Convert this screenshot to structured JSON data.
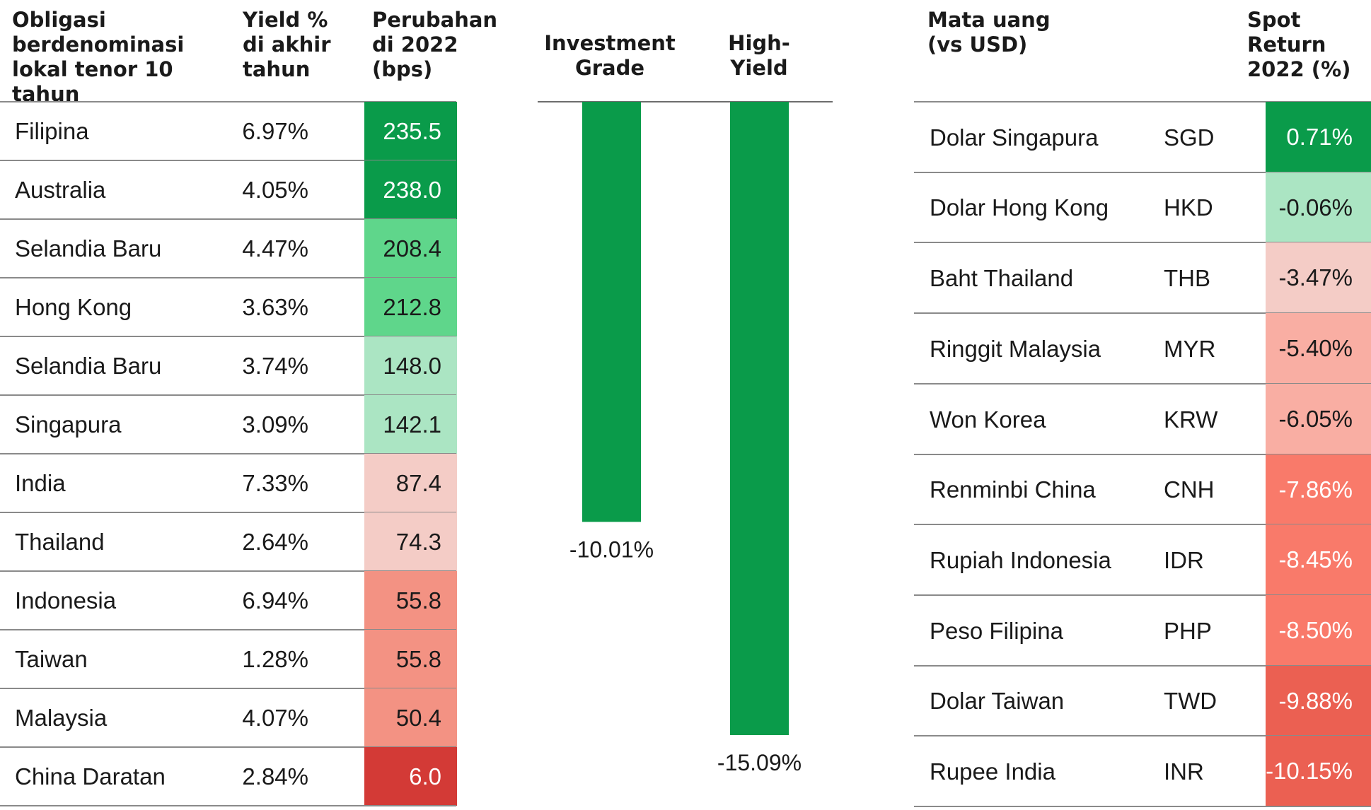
{
  "bonds": {
    "headers": {
      "country": "Obligasi\nberdenominasi\nlokal tenor 10 tahun",
      "yield": "Yield %\ndi akhir\ntahun",
      "change": "Perubahan\ndi 2022\n(bps)"
    },
    "rows": [
      {
        "country": "Filipina",
        "yield": "6.97%",
        "change": "235.5",
        "color": "#0a9b4a",
        "text_color": "#ffffff"
      },
      {
        "country": "Australia",
        "yield": "4.05%",
        "change": "238.0",
        "color": "#0a9b4a",
        "text_color": "#ffffff"
      },
      {
        "country": "Selandia Baru",
        "yield": "4.47%",
        "change": "208.4",
        "color": "#5fd68b",
        "text_color": "#1a1a1a"
      },
      {
        "country": "Hong Kong",
        "yield": "3.63%",
        "change": "212.8",
        "color": "#5fd68b",
        "text_color": "#1a1a1a"
      },
      {
        "country": "Selandia Baru",
        "yield": "3.74%",
        "change": "148.0",
        "color": "#abe5c3",
        "text_color": "#1a1a1a"
      },
      {
        "country": "Singapura",
        "yield": "3.09%",
        "change": "142.1",
        "color": "#abe5c3",
        "text_color": "#1a1a1a"
      },
      {
        "country": "India",
        "yield": "7.33%",
        "change": "87.4",
        "color": "#f4ccc6",
        "text_color": "#1a1a1a"
      },
      {
        "country": "Thailand",
        "yield": "2.64%",
        "change": "74.3",
        "color": "#f4ccc6",
        "text_color": "#1a1a1a"
      },
      {
        "country": "Indonesia",
        "yield": "6.94%",
        "change": "55.8",
        "color": "#f39283",
        "text_color": "#1a1a1a"
      },
      {
        "country": "Taiwan",
        "yield": "1.28%",
        "change": "55.8",
        "color": "#f39283",
        "text_color": "#1a1a1a"
      },
      {
        "country": "Malaysia",
        "yield": "4.07%",
        "change": "50.4",
        "color": "#f39283",
        "text_color": "#1a1a1a"
      },
      {
        "country": "China Daratan",
        "yield": "2.84%",
        "change": "6.0",
        "color": "#d33a36",
        "text_color": "#ffffff"
      }
    ]
  },
  "chart_data": {
    "type": "bar",
    "categories": [
      "Investment\nGrade",
      "High-\nYield"
    ],
    "values": [
      -10.01,
      -15.09
    ],
    "value_labels": [
      "-10.01%",
      "-15.09%"
    ],
    "ylim": [
      -15.09,
      0
    ],
    "bar_color": "#0a9b4a",
    "grid": false
  },
  "currencies": {
    "headers": {
      "currency": "Mata uang\n(vs USD)",
      "spot": "Spot\nReturn\n2022 (%)"
    },
    "rows": [
      {
        "name": "Dolar Singapura",
        "code": "SGD",
        "spot": "0.71%",
        "color": "#0a9b4a",
        "text_color": "#ffffff"
      },
      {
        "name": "Dolar Hong Kong",
        "code": "HKD",
        "spot": "-0.06%",
        "color": "#abe5c3",
        "text_color": "#1a1a1a"
      },
      {
        "name": "Baht Thailand",
        "code": "THB",
        "spot": "-3.47%",
        "color": "#f4ccc6",
        "text_color": "#1a1a1a"
      },
      {
        "name": "Ringgit Malaysia",
        "code": "MYR",
        "spot": "-5.40%",
        "color": "#f9aea3",
        "text_color": "#1a1a1a"
      },
      {
        "name": "Won Korea",
        "code": "KRW",
        "spot": "-6.05%",
        "color": "#f9aea3",
        "text_color": "#1a1a1a"
      },
      {
        "name": "Renminbi China",
        "code": "CNH",
        "spot": "-7.86%",
        "color": "#f97a6a",
        "text_color": "#ffffff"
      },
      {
        "name": "Rupiah Indonesia",
        "code": "IDR",
        "spot": "-8.45%",
        "color": "#f97a6a",
        "text_color": "#ffffff"
      },
      {
        "name": "Peso Filipina",
        "code": "PHP",
        "spot": "-8.50%",
        "color": "#f97a6a",
        "text_color": "#ffffff"
      },
      {
        "name": "Dolar Taiwan",
        "code": "TWD",
        "spot": "-9.88%",
        "color": "#eb6052",
        "text_color": "#ffffff"
      },
      {
        "name": "Rupee India",
        "code": "INR",
        "spot": "-10.15%",
        "color": "#eb6052",
        "text_color": "#ffffff"
      }
    ]
  }
}
